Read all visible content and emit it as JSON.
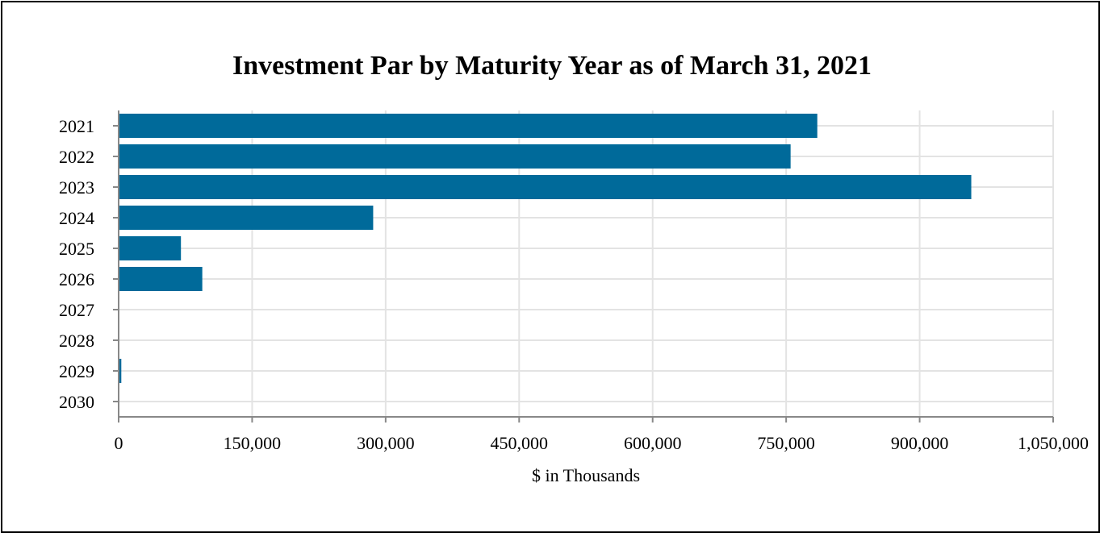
{
  "chart_data": {
    "type": "bar",
    "orientation": "horizontal",
    "title": "Investment Par by Maturity Year as of March 31, 2021",
    "xlabel": "$ in Thousands",
    "ylabel": "",
    "categories": [
      "2021",
      "2022",
      "2023",
      "2024",
      "2025",
      "2026",
      "2027",
      "2028",
      "2029",
      "2030"
    ],
    "values": [
      785000,
      755000,
      958000,
      286000,
      70000,
      94000,
      0,
      0,
      3000,
      0
    ],
    "xlim": [
      0,
      1050000
    ],
    "xticks": [
      0,
      150000,
      300000,
      450000,
      600000,
      750000,
      900000,
      1050000
    ],
    "xtick_labels": [
      "0",
      "150,000",
      "300,000",
      "450,000",
      "600,000",
      "750,000",
      "900,000",
      "1,050,000"
    ],
    "grid": true,
    "colors": {
      "bar": "#006a9a",
      "grid": "#e3e3e3",
      "axis": "#888888",
      "frame": "#000000"
    }
  }
}
